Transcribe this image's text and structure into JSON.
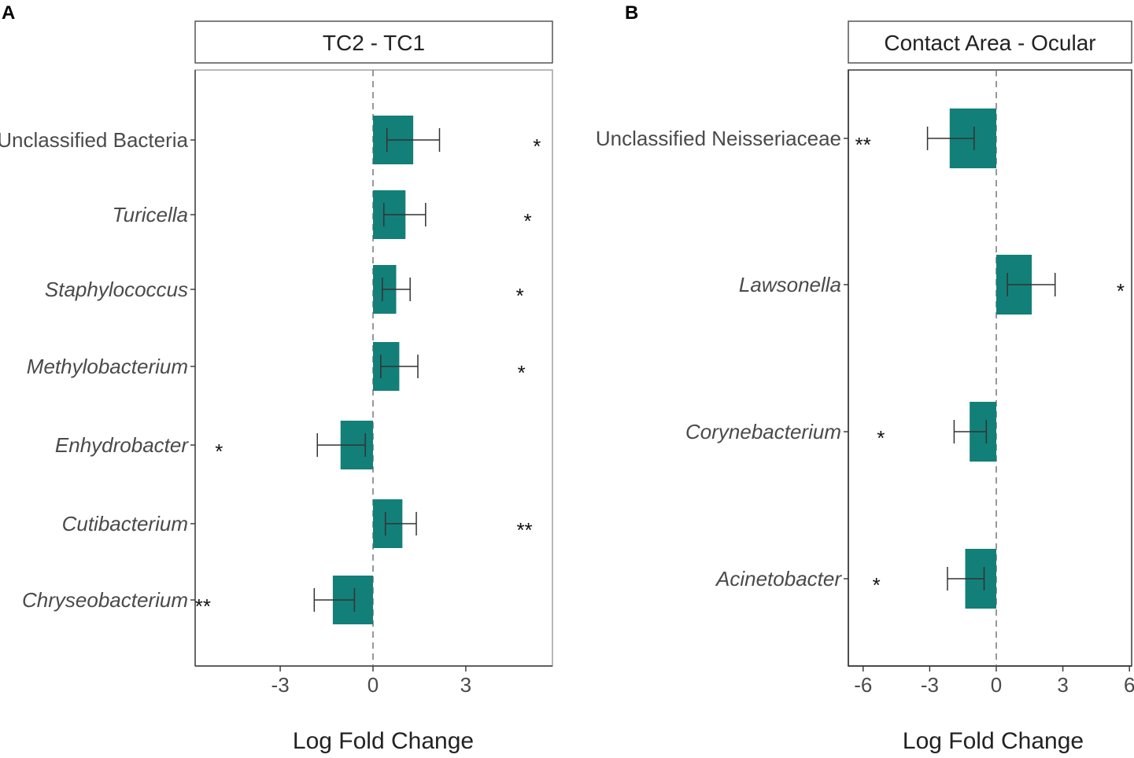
{
  "chart_data": [
    {
      "type": "bar",
      "orientation": "horizontal",
      "panel_label": "A",
      "title": "TC2 - TC1",
      "xlabel": "Log Fold Change",
      "xlim": [
        -5.7,
        5.7
      ],
      "xticks": [
        {
          "value": -3,
          "label": "-3"
        },
        {
          "value": 0,
          "label": "0"
        },
        {
          "value": 3,
          "label": "3"
        }
      ],
      "bar_color": "#137F79",
      "categories": [
        {
          "label": "Unclassified Bacteria",
          "italic": false,
          "value": 1.3,
          "err_low": 0.45,
          "err_high": 2.15,
          "sig": "*",
          "sig_x": 5.3
        },
        {
          "label": "Turicella",
          "italic": true,
          "value": 1.05,
          "err_low": 0.35,
          "err_high": 1.7,
          "sig": "*",
          "sig_x": 5.0
        },
        {
          "label": "Staphylococcus",
          "italic": true,
          "value": 0.75,
          "err_low": 0.3,
          "err_high": 1.2,
          "sig": "*",
          "sig_x": 4.75
        },
        {
          "label": "Methylobacterium",
          "italic": true,
          "value": 0.85,
          "err_low": 0.25,
          "err_high": 1.45,
          "sig": "*",
          "sig_x": 4.8
        },
        {
          "label": "Enhydrobacter",
          "italic": true,
          "value": -1.05,
          "err_low": -1.8,
          "err_high": -0.25,
          "sig": "*",
          "sig_x": -4.98
        },
        {
          "label": "Cutibacterium",
          "italic": true,
          "value": 0.95,
          "err_low": 0.4,
          "err_high": 1.4,
          "sig": "**",
          "sig_x": 4.9
        },
        {
          "label": "Chryseobacterium",
          "italic": true,
          "value": -1.3,
          "err_low": -1.9,
          "err_high": -0.6,
          "sig": "**",
          "sig_x": -5.5
        }
      ]
    },
    {
      "type": "bar",
      "orientation": "horizontal",
      "panel_label": "B",
      "title": "Contact Area - Ocular",
      "xlabel": "Log Fold Change",
      "xlim": [
        -6.4,
        6.0
      ],
      "xticks": [
        {
          "value": -6,
          "label": "-6"
        },
        {
          "value": -3,
          "label": "-3"
        },
        {
          "value": 0,
          "label": "0"
        },
        {
          "value": 3,
          "label": "3"
        },
        {
          "value": 6,
          "label": "6"
        }
      ],
      "bar_color": "#137F79",
      "categories": [
        {
          "label": "Unclassified Neisseriaceae",
          "italic": false,
          "value": -2.1,
          "err_low": -3.1,
          "err_high": -1.0,
          "sig": "**",
          "sig_x": -6.0
        },
        {
          "label": "Lawsonella",
          "italic": true,
          "value": 1.6,
          "err_low": 0.5,
          "err_high": 2.65,
          "sig": "*",
          "sig_x": 5.6
        },
        {
          "label": "Corynebacterium",
          "italic": true,
          "value": -1.2,
          "err_low": -1.9,
          "err_high": -0.45,
          "sig": "*",
          "sig_x": -5.2
        },
        {
          "label": "Acinetobacter",
          "italic": true,
          "value": -1.4,
          "err_low": -2.2,
          "err_high": -0.55,
          "sig": "*",
          "sig_x": -5.4
        }
      ]
    }
  ]
}
